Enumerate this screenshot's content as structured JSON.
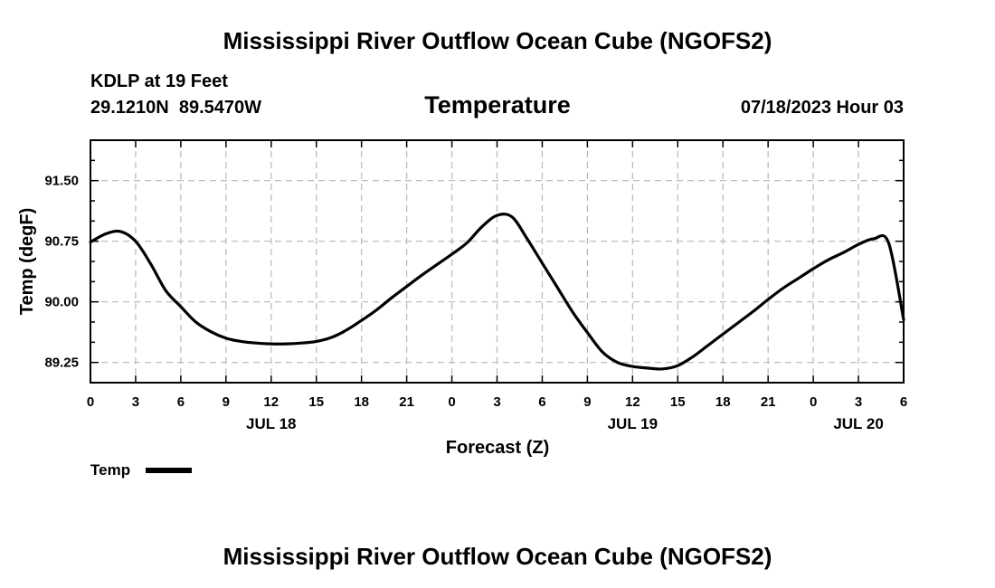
{
  "page": {
    "top_title": "Mississippi River Outflow Ocean Cube (NGOFS2)",
    "bottom_title": "Mississippi River Outflow Ocean Cube (NGOFS2)",
    "station_line1": "KDLP at 19 Feet",
    "station_line2": "29.1210N  89.5470W",
    "datetime": "07/18/2023 Hour 03"
  },
  "chart_data": {
    "type": "line",
    "title": "Temperature",
    "xlabel": "Forecast (Z)",
    "ylabel": "Temp (degF)",
    "xlim": [
      0,
      54
    ],
    "ylim": [
      89.0,
      92.0
    ],
    "grid": true,
    "x_tick_values": [
      0,
      3,
      6,
      9,
      12,
      15,
      18,
      21,
      24,
      27,
      30,
      33,
      36,
      39,
      42,
      45,
      48,
      51,
      54
    ],
    "x_tick_labels": [
      "0",
      "3",
      "6",
      "9",
      "12",
      "15",
      "18",
      "21",
      "0",
      "3",
      "6",
      "9",
      "12",
      "15",
      "18",
      "21",
      "0",
      "3",
      "6"
    ],
    "day_labels": [
      {
        "x": 12,
        "label": "JUL 18"
      },
      {
        "x": 36,
        "label": "JUL 19"
      },
      {
        "x": 51,
        "label": "JUL 20"
      }
    ],
    "y_tick_values": [
      89.25,
      90.0,
      90.75,
      91.5
    ],
    "y_tick_labels": [
      "89.25",
      "90.00",
      "90.75",
      "91.50"
    ],
    "legend": {
      "label": "Temp",
      "position": "bottom-left"
    },
    "series": [
      {
        "name": "Temp",
        "color": "#000000",
        "x": [
          0,
          1,
          2,
          3,
          4,
          5,
          6,
          7,
          8,
          9,
          10,
          11,
          12,
          13,
          14,
          15,
          16,
          17,
          18,
          19,
          20,
          21,
          22,
          23,
          24,
          25,
          26,
          27,
          28,
          29,
          30,
          31,
          32,
          33,
          34,
          35,
          36,
          37,
          38,
          39,
          40,
          41,
          42,
          43,
          44,
          45,
          46,
          47,
          48,
          49,
          50,
          51,
          52,
          53,
          54
        ],
        "values": [
          90.74,
          90.84,
          90.87,
          90.75,
          90.47,
          90.14,
          89.94,
          89.75,
          89.63,
          89.55,
          89.51,
          89.49,
          89.48,
          89.48,
          89.49,
          89.51,
          89.56,
          89.65,
          89.77,
          89.9,
          90.05,
          90.19,
          90.33,
          90.46,
          90.59,
          90.73,
          90.93,
          91.07,
          91.05,
          90.78,
          90.48,
          90.18,
          89.88,
          89.62,
          89.38,
          89.25,
          89.2,
          89.18,
          89.17,
          89.21,
          89.32,
          89.46,
          89.6,
          89.74,
          89.88,
          90.03,
          90.17,
          90.29,
          90.41,
          90.52,
          90.61,
          90.71,
          90.78,
          90.73,
          89.78
        ]
      }
    ]
  }
}
